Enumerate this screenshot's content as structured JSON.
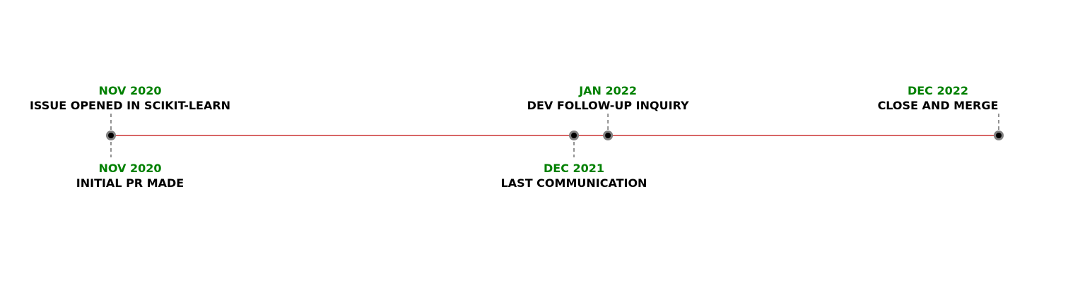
{
  "colors": {
    "axis_line": "#cc3333",
    "stem": "#777777",
    "marker_outer": "#808080",
    "marker_inner": "#000000",
    "date_text": "#008000",
    "title_text": "#000000"
  },
  "events": [
    {
      "id": "issue-opened",
      "date": "NOV 2020",
      "title": "ISSUE OPENED IN SCIKIT-LEARN",
      "side": "above",
      "time": 2020.83
    },
    {
      "id": "initial-pr",
      "date": "NOV 2020",
      "title": "INITIAL PR MADE",
      "side": "below",
      "time": 2020.83
    },
    {
      "id": "last-communication",
      "date": "DEC 2021",
      "title": "LAST COMMUNICATION",
      "side": "below",
      "time": 2021.92
    },
    {
      "id": "dev-follow-up",
      "date": "JAN 2022",
      "title": "DEV FOLLOW-UP INQUIRY",
      "side": "above",
      "time": 2022.0
    },
    {
      "id": "close-and-merge",
      "date": "DEC 2022",
      "title": "CLOSE AND MERGE",
      "side": "above",
      "time": 2022.92
    }
  ]
}
